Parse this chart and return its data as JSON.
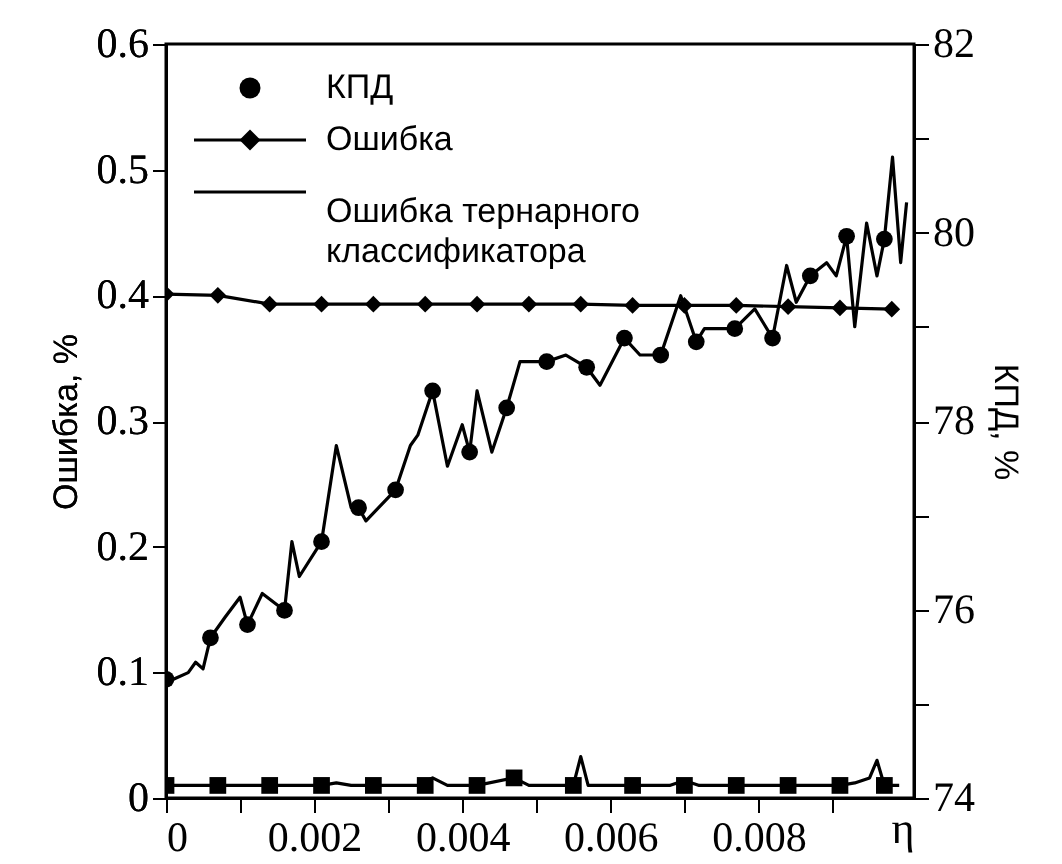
{
  "chart_data": {
    "type": "line",
    "ylabel": "Ошибка, %",
    "y2label": "КПД, %",
    "xlabel": "η",
    "xlim": [
      0,
      0.0101
    ],
    "xticks": [
      0,
      {
        "value": 0.001,
        "label": null
      },
      0.002,
      {
        "value": 0.003,
        "label": null
      },
      0.004,
      {
        "value": 0.005,
        "label": null
      },
      0.006,
      {
        "value": 0.007,
        "label": null
      },
      0.008,
      {
        "value": 0.009,
        "label": null
      }
    ],
    "ylim": [
      0,
      0.6
    ],
    "yticks": [
      0,
      0.1,
      0.2,
      0.3,
      0.4,
      0.5,
      0.6
    ],
    "y2lim": [
      74,
      82
    ],
    "y2ticks": [
      74,
      {
        "value": 75,
        "label": null
      },
      76,
      {
        "value": 77,
        "label": null
      },
      78,
      {
        "value": 79,
        "label": null
      },
      80,
      {
        "value": 81,
        "label": null
      },
      82
    ],
    "grid": false,
    "legend": "top left",
    "line_style": "solid",
    "series": [
      {
        "axis": "y2",
        "color": "#000000",
        "marker": "none",
        "x": [
          0,
          0.0001,
          0.0003,
          0.0004,
          0.0005,
          0.0006,
          0.0008,
          0.001,
          0.0011,
          0.0013,
          0.0016,
          0.0017,
          0.0018,
          0.0021,
          0.0023,
          0.0025,
          0.0026,
          0.0027,
          0.0031,
          0.0033,
          0.0034,
          0.0036,
          0.0038,
          0.004,
          0.0041,
          0.0042,
          0.0044,
          0.0046,
          0.00478,
          0.00514,
          0.0054,
          0.00568,
          0.00586,
          0.00619,
          0.0064,
          0.00668,
          0.00695,
          0.00716,
          0.00727,
          0.00768,
          0.00795,
          0.00819,
          0.00838,
          0.00851,
          0.0087,
          0.00892,
          0.00905,
          0.00919,
          0.0093,
          0.00946,
          0.0096,
          0.0097,
          0.00981,
          0.00992,
          0.01
        ],
        "values": [
          75.26,
          75.26,
          75.33,
          75.44,
          75.37,
          75.7,
          75.92,
          76.13,
          75.84,
          76.17,
          75.99,
          76.72,
          76.35,
          76.72,
          77.74,
          77.08,
          77.08,
          76.94,
          77.27,
          77.74,
          77.85,
          78.32,
          77.52,
          77.96,
          77.67,
          78.32,
          77.67,
          78.14,
          78.63,
          78.63,
          78.7,
          78.57,
          78.38,
          78.88,
          78.7,
          78.7,
          79.33,
          78.84,
          78.98,
          78.98,
          79.19,
          78.88,
          79.65,
          79.26,
          79.54,
          79.68,
          79.54,
          79.96,
          79.0,
          80.1,
          79.54,
          79.93,
          80.8,
          79.68,
          80.32
        ]
      },
      {
        "name": "КПД",
        "type": "scatter",
        "axis": "y2",
        "color": "#000000",
        "marker": "circle",
        "x": [
          0,
          0.0006,
          0.0011,
          0.0016,
          0.0021,
          0.0026,
          0.0031,
          0.0036,
          0.0041,
          0.0046,
          0.00514,
          0.00568,
          0.00619,
          0.00668,
          0.00716,
          0.00768,
          0.00819,
          0.0087,
          0.00919,
          0.0097
        ],
        "values": [
          75.26,
          75.7,
          75.84,
          75.99,
          76.72,
          77.08,
          77.27,
          78.32,
          77.67,
          78.14,
          78.63,
          78.57,
          78.88,
          78.7,
          78.84,
          78.98,
          78.88,
          79.54,
          79.96,
          79.93
        ]
      },
      {
        "name": "Ошибка",
        "axis": "y",
        "color": "#000000",
        "marker": "diamond",
        "x": [
          0,
          0.0007,
          0.0014,
          0.0021,
          0.0028,
          0.0035,
          0.0042,
          0.0049,
          0.0056,
          0.0063,
          0.007,
          0.0077,
          0.0084,
          0.0091,
          0.0098
        ],
        "values": [
          0.401,
          0.4,
          0.393,
          0.393,
          0.393,
          0.393,
          0.393,
          0.393,
          0.393,
          0.392,
          0.392,
          0.392,
          0.391,
          0.39,
          0.389
        ]
      },
      {
        "name": "Ошибка тернарного классификатора",
        "axis": "y",
        "color": "#000000",
        "marker": "none",
        "x": [
          0,
          0.0007,
          0.0014,
          0.0021,
          0.0023,
          0.0025,
          0.0028,
          0.0034,
          0.0036,
          0.0038,
          0.0042,
          0.0047,
          0.0049,
          0.0055,
          0.0056,
          0.0057,
          0.0063,
          0.0068,
          0.007,
          0.0072,
          0.0077,
          0.0084,
          0.0091,
          0.0093,
          0.0095,
          0.0096,
          0.0097,
          0.0099
        ],
        "values": [
          0.01,
          0.01,
          0.01,
          0.01,
          0.012,
          0.01,
          0.01,
          0.01,
          0.016,
          0.01,
          0.01,
          0.016,
          0.01,
          0.01,
          0.033,
          0.01,
          0.01,
          0.01,
          0.014,
          0.01,
          0.01,
          0.01,
          0.01,
          0.012,
          0.016,
          0.03,
          0.01,
          0.01
        ]
      },
      {
        "type": "scatter",
        "axis": "y",
        "color": "#000000",
        "marker": "square",
        "x": [
          0,
          0.0007,
          0.0014,
          0.0021,
          0.0028,
          0.0035,
          0.0042,
          0.0047,
          0.0055,
          0.0063,
          0.007,
          0.0077,
          0.0084,
          0.0091,
          0.0097
        ],
        "values": [
          0.01,
          0.01,
          0.01,
          0.01,
          0.01,
          0.01,
          0.01,
          0.016,
          0.01,
          0.01,
          0.01,
          0.01,
          0.01,
          0.01,
          0.01
        ]
      }
    ]
  }
}
